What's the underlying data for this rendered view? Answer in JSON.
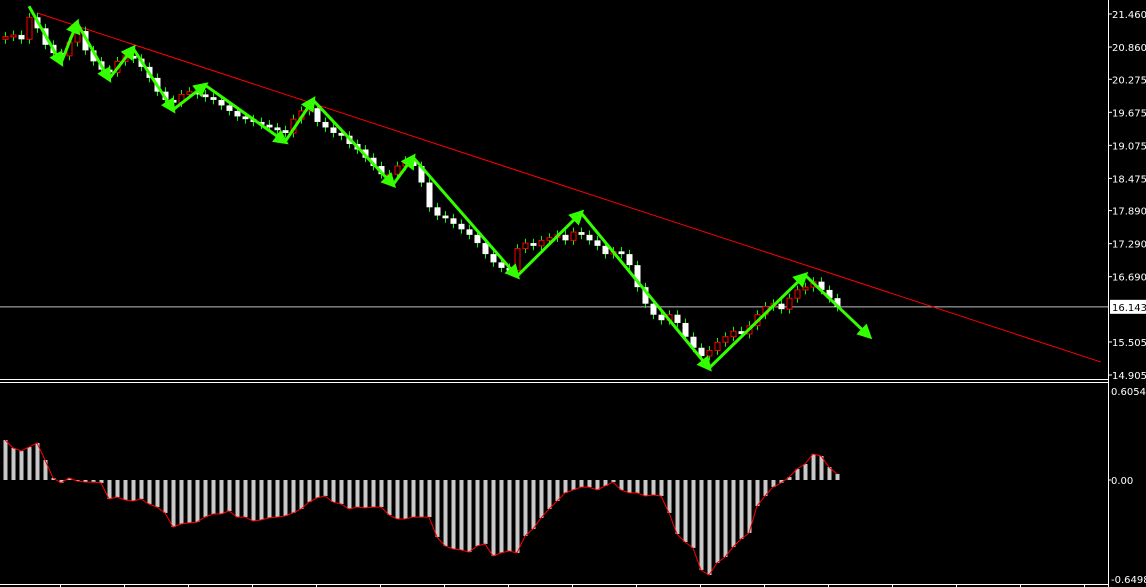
{
  "chart_data": [
    {
      "type": "candlestick",
      "panel": "price",
      "y_ticks": [
        "21.460",
        "20.860",
        "20.275",
        "19.675",
        "19.075",
        "18.475",
        "17.890",
        "17.290",
        "16.690",
        "15.505",
        "14.905"
      ],
      "ylim": [
        14.905,
        21.46
      ],
      "current_price": "16.143",
      "close": [
        21.05,
        21.08,
        21.0,
        21.4,
        21.2,
        20.9,
        20.75,
        20.7,
        20.95,
        21.15,
        20.8,
        20.6,
        20.45,
        20.4,
        20.6,
        20.7,
        20.65,
        20.5,
        20.3,
        20.05,
        19.9,
        19.85,
        20.0,
        20.05,
        20.0,
        19.95,
        19.9,
        19.8,
        19.7,
        19.6,
        19.55,
        19.5,
        19.45,
        19.4,
        19.35,
        19.3,
        19.55,
        19.7,
        19.75,
        19.5,
        19.4,
        19.3,
        19.25,
        19.1,
        19.0,
        18.85,
        18.7,
        18.55,
        18.55,
        18.7,
        18.8,
        18.7,
        18.4,
        17.95,
        17.8,
        17.75,
        17.65,
        17.55,
        17.45,
        17.3,
        17.1,
        16.95,
        16.85,
        16.8,
        17.2,
        17.3,
        17.25,
        17.35,
        17.4,
        17.45,
        17.35,
        17.5,
        17.45,
        17.35,
        17.25,
        17.1,
        17.15,
        17.1,
        16.9,
        16.5,
        16.2,
        16.0,
        15.9,
        16.0,
        15.85,
        15.6,
        15.4,
        15.25,
        15.35,
        15.5,
        15.6,
        15.7,
        15.65,
        15.8,
        16.0,
        16.15,
        16.2,
        16.1,
        16.3,
        16.45,
        16.5,
        16.6,
        16.45,
        16.3,
        16.14
      ],
      "first_open": 21.0,
      "zigzag": [
        [
          3,
          21.6
        ],
        [
          7,
          20.57
        ],
        [
          9,
          21.3
        ],
        [
          13,
          20.28
        ],
        [
          16,
          20.84
        ],
        [
          21,
          19.72
        ],
        [
          25,
          20.17
        ],
        [
          35,
          19.14
        ],
        [
          38.5,
          19.9
        ],
        [
          48.5,
          18.36
        ],
        [
          51,
          18.86
        ],
        [
          64,
          16.7
        ],
        [
          72,
          17.85
        ],
        [
          88,
          15.03
        ],
        [
          100,
          16.72
        ],
        [
          108,
          15.61
        ]
      ],
      "trendline": [
        [
          4,
          21.48
        ],
        [
          137,
          15.14
        ]
      ],
      "colors": {
        "up_body": "#ff0000",
        "down_body": "#ffffff",
        "wick": "#00ff00",
        "zigzag": "#33ff00",
        "trendline": "#ff0000",
        "price_line": "#c0c0c0"
      }
    },
    {
      "type": "bar",
      "panel": "macd",
      "y_ticks": [
        "0.6054",
        "0.00",
        "-0.6498"
      ],
      "ylim": [
        -0.6498,
        0.6054
      ],
      "values": [
        0.272,
        0.218,
        0.197,
        0.224,
        0.252,
        0.136,
        0.014,
        -0.02,
        0.014,
        -0.007,
        -0.014,
        -0.014,
        -0.02,
        -0.129,
        -0.116,
        -0.136,
        -0.143,
        -0.129,
        -0.163,
        -0.184,
        -0.224,
        -0.32,
        -0.299,
        -0.292,
        -0.286,
        -0.252,
        -0.231,
        -0.231,
        -0.211,
        -0.252,
        -0.252,
        -0.279,
        -0.272,
        -0.258,
        -0.252,
        -0.245,
        -0.224,
        -0.197,
        -0.15,
        -0.122,
        -0.109,
        -0.15,
        -0.163,
        -0.197,
        -0.184,
        -0.19,
        -0.184,
        -0.184,
        -0.238,
        -0.265,
        -0.265,
        -0.252,
        -0.252,
        -0.252,
        -0.388,
        -0.449,
        -0.469,
        -0.476,
        -0.49,
        -0.449,
        -0.435,
        -0.517,
        -0.496,
        -0.483,
        -0.496,
        -0.381,
        -0.333,
        -0.258,
        -0.197,
        -0.143,
        -0.088,
        -0.068,
        -0.048,
        -0.048,
        -0.068,
        -0.041,
        -0.014,
        -0.068,
        -0.088,
        -0.088,
        -0.109,
        -0.102,
        -0.109,
        -0.224,
        -0.367,
        -0.422,
        -0.462,
        -0.612,
        -0.646,
        -0.564,
        -0.524,
        -0.456,
        -0.401,
        -0.36,
        -0.177,
        -0.109,
        -0.048,
        -0.02,
        0.02,
        0.075,
        0.109,
        0.177,
        0.163,
        0.088,
        0.041
      ],
      "colors": {
        "histogram": "#c8c8c8",
        "signal": "#ff0000"
      }
    }
  ]
}
